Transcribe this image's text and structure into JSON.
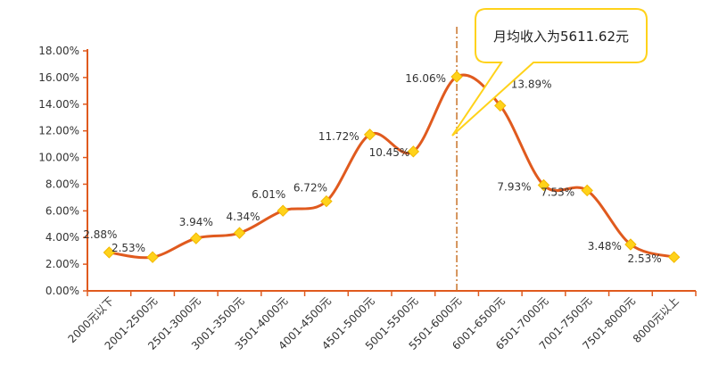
{
  "chart_data": {
    "type": "line",
    "categories": [
      "2000元以下",
      "2001-2500元",
      "2501-3000元",
      "3001-3500元",
      "3501-4000元",
      "4001-4500元",
      "4501-5000元",
      "5001-5500元",
      "5501-6000元",
      "6001-6500元",
      "6501-7000元",
      "7001-7500元",
      "7501-8000元",
      "8000元以上"
    ],
    "values": [
      2.88,
      2.53,
      3.94,
      4.34,
      6.01,
      6.72,
      11.72,
      10.45,
      16.06,
      13.89,
      7.93,
      7.53,
      3.48,
      2.53
    ],
    "data_labels": [
      "2.88%",
      "2.53%",
      "3.94%",
      "4.34%",
      "6.01%",
      "6.72%",
      "11.72%",
      "10.45%",
      "16.06%",
      "13.89%",
      "7.93%",
      "7.53%",
      "3.48%",
      "2.53%"
    ],
    "yticks": [
      "0.00%",
      "2.00%",
      "4.00%",
      "6.00%",
      "8.00%",
      "10.00%",
      "12.00%",
      "14.00%",
      "16.00%",
      "18.00%"
    ],
    "ylim": [
      0,
      18
    ],
    "grid": false,
    "line_color": "#E05A1E",
    "marker_color": "#FFD21A",
    "callout": {
      "text": "月均收入为5611.62元",
      "reference_x_value": 5611.62,
      "border_color": "#FFD21A",
      "reference_line_color": "#C9732A"
    }
  }
}
